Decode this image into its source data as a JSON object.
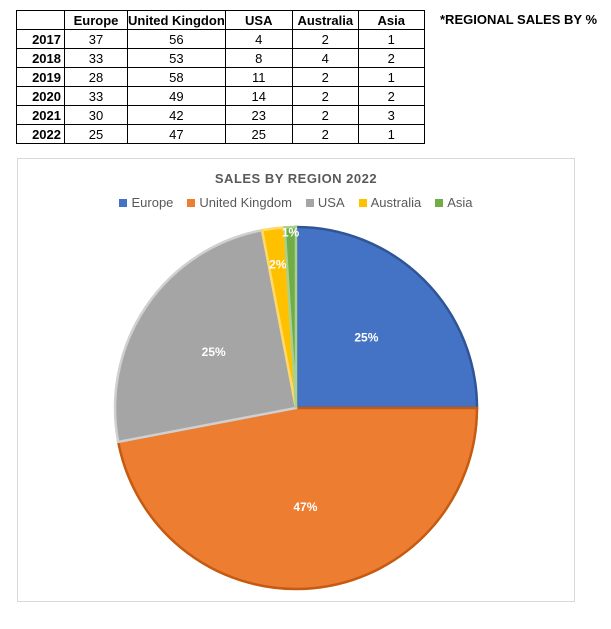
{
  "table": {
    "headers": [
      "",
      "Europe",
      "United Kingdon",
      "USA",
      "Australia",
      "Asia"
    ],
    "rows": [
      [
        "2017",
        "37",
        "56",
        "4",
        "2",
        "1"
      ],
      [
        "2018",
        "33",
        "53",
        "8",
        "4",
        "2"
      ],
      [
        "2019",
        "28",
        "58",
        "11",
        "2",
        "1"
      ],
      [
        "2020",
        "33",
        "49",
        "14",
        "2",
        "2"
      ],
      [
        "2021",
        "30",
        "42",
        "23",
        "2",
        "3"
      ],
      [
        "2022",
        "25",
        "47",
        "25",
        "2",
        "1"
      ]
    ]
  },
  "note": "*REGIONAL SALES BY %",
  "chart_data": {
    "type": "pie",
    "title": "SALES BY REGION 2022",
    "legend_position": "top",
    "categories": [
      "Europe",
      "United Kingdom",
      "USA",
      "Australia",
      "Asia"
    ],
    "values": [
      25,
      47,
      25,
      2,
      1
    ],
    "labels": [
      "25%",
      "47%",
      "25%",
      "2%",
      "1%"
    ],
    "colors": [
      "#4472c4",
      "#ed7d31",
      "#a5a5a5",
      "#ffc000",
      "#70ad47"
    ]
  }
}
